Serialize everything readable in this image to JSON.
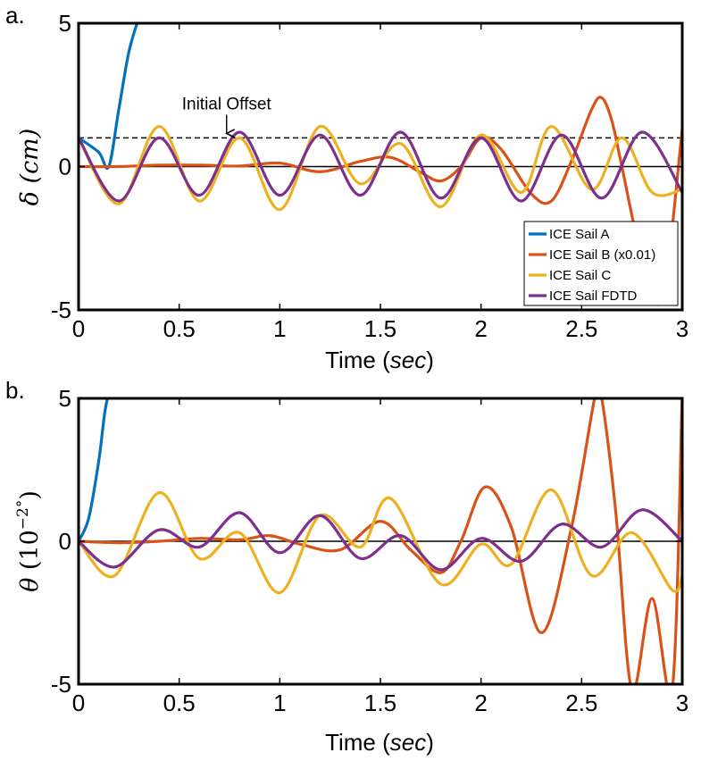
{
  "chart_data": [
    {
      "type": "line",
      "panel_label": "a.",
      "xlabel_prefix": "Time (",
      "xlabel_unit": "sec",
      "xlabel_suffix": ")",
      "ylabel_symbol": "δ",
      "ylabel_unit": "(cm)",
      "xlim": [
        0,
        3
      ],
      "ylim": [
        -5,
        5
      ],
      "xticks": [
        "0",
        "0.5",
        "1",
        "1.5",
        "2",
        "2.5",
        "3"
      ],
      "yticks": [
        "-5",
        "0",
        "5"
      ],
      "annotation": {
        "text": "Initial Offset",
        "x": 0.7,
        "y": 1
      },
      "reference_lines": [
        {
          "name": "initial-offset",
          "y": 1,
          "style": "dashed",
          "color": "#000000"
        },
        {
          "name": "zero",
          "y": 0,
          "style": "solid",
          "color": "#000000"
        }
      ],
      "series": [
        {
          "name": "ICE Sail A",
          "color": "#0072BD",
          "x": [
            0,
            0.1,
            0.15,
            0.2,
            0.25,
            0.3
          ],
          "y": [
            1,
            0.5,
            0,
            2.0,
            4.0,
            5.2
          ]
        },
        {
          "name": "ICE Sail B (x0.01)",
          "color": "#D95319",
          "x": [
            0,
            0.2,
            0.4,
            0.6,
            0.8,
            1.0,
            1.2,
            1.4,
            1.55,
            1.7,
            1.8,
            1.9,
            2.0,
            2.1,
            2.25,
            2.35,
            2.45,
            2.55,
            2.6,
            2.65,
            2.7,
            2.8,
            2.9,
            3.0
          ],
          "y": [
            0,
            0,
            0.05,
            0.05,
            0.02,
            0.12,
            -0.18,
            0.18,
            0.32,
            -0.2,
            -0.5,
            0.0,
            1.0,
            0.6,
            -0.95,
            -1.2,
            0.2,
            2.0,
            2.4,
            1.6,
            0.0,
            -3.2,
            -4.6,
            1.3
          ]
        },
        {
          "name": "ICE Sail C",
          "color": "#EDB120",
          "x": [
            0,
            0.2,
            0.4,
            0.6,
            0.8,
            1.0,
            1.2,
            1.4,
            1.6,
            1.8,
            2.0,
            2.2,
            2.35,
            2.55,
            2.7,
            2.85,
            3.0
          ],
          "y": [
            1,
            -1.3,
            1.4,
            -1.2,
            1.0,
            -1.5,
            1.4,
            -0.6,
            0.8,
            -1.4,
            1.1,
            -0.9,
            1.4,
            -0.8,
            1.0,
            -0.9,
            -0.8
          ]
        },
        {
          "name": "ICE Sail FDTD",
          "color": "#7E2F8E",
          "x": [
            0,
            0.2,
            0.4,
            0.6,
            0.8,
            1.0,
            1.2,
            1.4,
            1.6,
            1.8,
            2.0,
            2.2,
            2.4,
            2.6,
            2.8,
            3.0
          ],
          "y": [
            1,
            -1.2,
            1.0,
            -1.0,
            1.2,
            -1.0,
            1.1,
            -1.0,
            1.2,
            -1.1,
            1.0,
            -1.2,
            1.1,
            -1.1,
            1.2,
            -0.9
          ]
        }
      ],
      "legend": {
        "entries": [
          "ICE Sail A",
          "ICE Sail B (x0.01)",
          "ICE Sail C",
          "ICE Sail FDTD"
        ],
        "location": "bottom-right"
      }
    },
    {
      "type": "line",
      "panel_label": "b.",
      "xlabel_prefix": "Time (",
      "xlabel_unit": "sec",
      "xlabel_suffix": ")",
      "ylabel_symbol": "θ",
      "ylabel_unit_base": "(10",
      "ylabel_unit_exp": "−2°",
      "ylabel_unit_close": ")",
      "xlim": [
        0,
        3
      ],
      "ylim": [
        -5,
        5
      ],
      "xticks": [
        "0",
        "0.5",
        "1",
        "1.5",
        "2",
        "2.5",
        "3"
      ],
      "yticks": [
        "-5",
        "0",
        "5"
      ],
      "reference_lines": [
        {
          "name": "zero",
          "y": 0,
          "style": "solid",
          "color": "#000000"
        }
      ],
      "series": [
        {
          "name": "ICE Sail A",
          "color": "#0072BD",
          "x": [
            0,
            0.05,
            0.1,
            0.13,
            0.15
          ],
          "y": [
            0,
            0.8,
            2.8,
            4.5,
            5.2
          ]
        },
        {
          "name": "ICE Sail B (x0.01)",
          "color": "#D95319",
          "x": [
            0,
            0.2,
            0.4,
            0.6,
            0.8,
            0.95,
            1.1,
            1.3,
            1.5,
            1.65,
            1.8,
            1.9,
            2.02,
            2.15,
            2.3,
            2.45,
            2.57,
            2.6,
            2.67,
            2.75,
            2.85,
            2.95,
            3.0
          ],
          "y": [
            0,
            -0.05,
            0.0,
            0.1,
            0.05,
            0.2,
            -0.1,
            -0.3,
            0.7,
            -0.3,
            -1.1,
            0.0,
            1.9,
            0.5,
            -3.2,
            0.5,
            5.2,
            5.0,
            1.0,
            -5.2,
            -2.0,
            -5.2,
            5.2
          ]
        },
        {
          "name": "ICE Sail C",
          "color": "#EDB120",
          "x": [
            0,
            0.18,
            0.4,
            0.6,
            0.8,
            1.0,
            1.2,
            1.4,
            1.55,
            1.8,
            2.0,
            2.15,
            2.35,
            2.55,
            2.75,
            2.95,
            3.0
          ],
          "y": [
            0,
            -1.2,
            1.7,
            -0.6,
            0.3,
            -1.8,
            0.9,
            -0.2,
            1.5,
            -1.5,
            -0.1,
            -0.8,
            1.8,
            -1.2,
            0.3,
            -1.7,
            -1.2
          ]
        },
        {
          "name": "ICE Sail FDTD",
          "color": "#7E2F8E",
          "x": [
            0,
            0.18,
            0.4,
            0.6,
            0.8,
            1.0,
            1.2,
            1.4,
            1.6,
            1.8,
            2.0,
            2.2,
            2.4,
            2.6,
            2.8,
            3.0
          ],
          "y": [
            0,
            -0.9,
            0.4,
            -0.2,
            1.0,
            -0.4,
            0.9,
            -0.6,
            0.2,
            -1.0,
            0.1,
            -0.7,
            0.6,
            -0.2,
            1.1,
            0.0
          ]
        }
      ]
    }
  ]
}
